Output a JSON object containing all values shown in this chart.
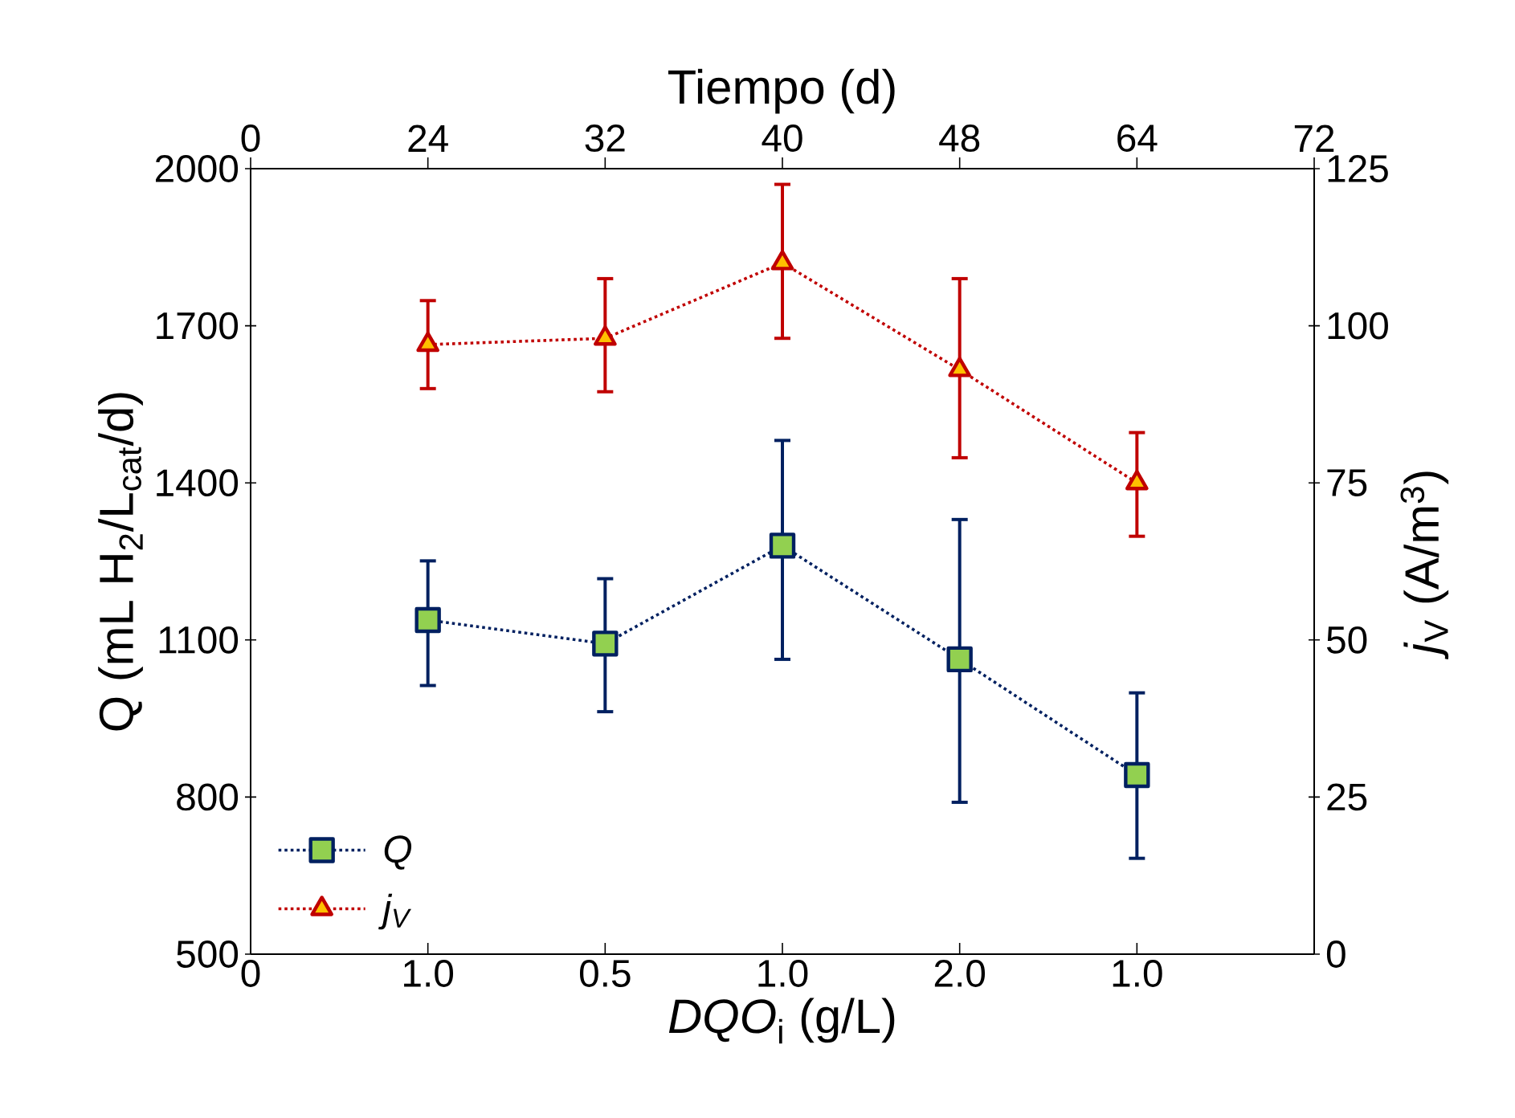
{
  "chart_data": {
    "type": "line",
    "xlabel": "*DQO*$_{i}$ (g/L)",
    "ylabel": "Q (mL H$_{2}$/L$_{cat}$/d)",
    "y2label": "*j*$_{V}$ (A/m$^{3}$)",
    "x2label": "Tiempo (d)",
    "categories": [
      "0",
      "1.0",
      "0.5",
      "1.0",
      "2.0",
      "1.0",
      null
    ],
    "annotations": [
      "0",
      "24",
      "32",
      "40",
      "48",
      "64",
      "72"
    ],
    "ylim": [
      500,
      2000
    ],
    "yticks": [
      500,
      800,
      1100,
      1400,
      1700,
      2000
    ],
    "y2lim": [
      0,
      125
    ],
    "y2ticks": [
      0,
      25,
      50,
      75,
      100,
      125
    ],
    "legend": "bottom left",
    "line_style": "dotted",
    "series": [
      {
        "name": "Q",
        "color": "#002060",
        "marker": "square",
        "values": [
          null,
          1138,
          1093,
          1280,
          1063,
          842,
          null
        ],
        "errors": [
          null,
          [
            1013,
            1251
          ],
          [
            963,
            1217
          ],
          [
            1063,
            1481
          ],
          [
            790,
            1330
          ],
          [
            683,
            999
          ],
          null
        ]
      },
      {
        "name": "j$_{V}$",
        "color": "#c00000",
        "marker": "triangle",
        "axis": "y2",
        "values": [
          null,
          97,
          98,
          110,
          93,
          75,
          null
        ],
        "errors": [
          null,
          [
            90,
            104
          ],
          [
            89.5,
            107.5
          ],
          [
            98,
            122.5
          ],
          [
            79,
            107.5
          ],
          [
            66.5,
            83
          ],
          null
        ]
      }
    ]
  }
}
